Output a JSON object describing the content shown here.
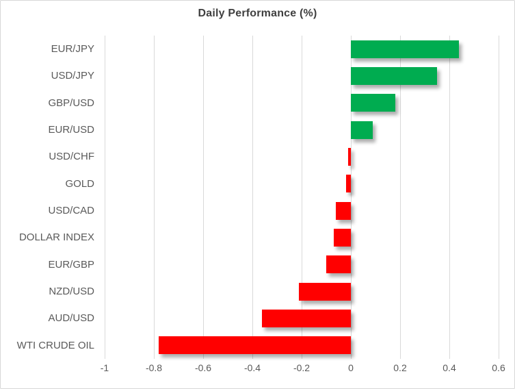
{
  "chart_data": {
    "type": "bar",
    "orientation": "horizontal",
    "title": "Daily Performance (%)",
    "categories": [
      "EUR/JPY",
      "USD/JPY",
      "GBP/USD",
      "EUR/USD",
      "USD/CHF",
      "GOLD",
      "USD/CAD",
      "DOLLAR INDEX",
      "EUR/GBP",
      "NZD/USD",
      "AUD/USD",
      "WTI CRUDE OIL"
    ],
    "values": [
      0.44,
      0.35,
      0.18,
      0.09,
      -0.01,
      -0.02,
      -0.06,
      -0.07,
      -0.1,
      -0.21,
      -0.36,
      -0.78
    ],
    "xlim": [
      -1,
      0.6
    ],
    "x_ticks": [
      -1,
      -0.8,
      -0.6,
      -0.4,
      -0.2,
      0,
      0.2,
      0.4,
      0.6
    ],
    "x_tick_labels": [
      "-1",
      "-0.8",
      "-0.6",
      "-0.4",
      "-0.2",
      "0",
      "0.2",
      "0.4",
      "0.6"
    ],
    "grid": true,
    "legend": "none",
    "colors": {
      "positive": "#00AC50",
      "negative": "#FF0000",
      "gridline": "#D9D9D9",
      "axis_text": "#595959",
      "title_text": "#3F3F3F"
    }
  }
}
